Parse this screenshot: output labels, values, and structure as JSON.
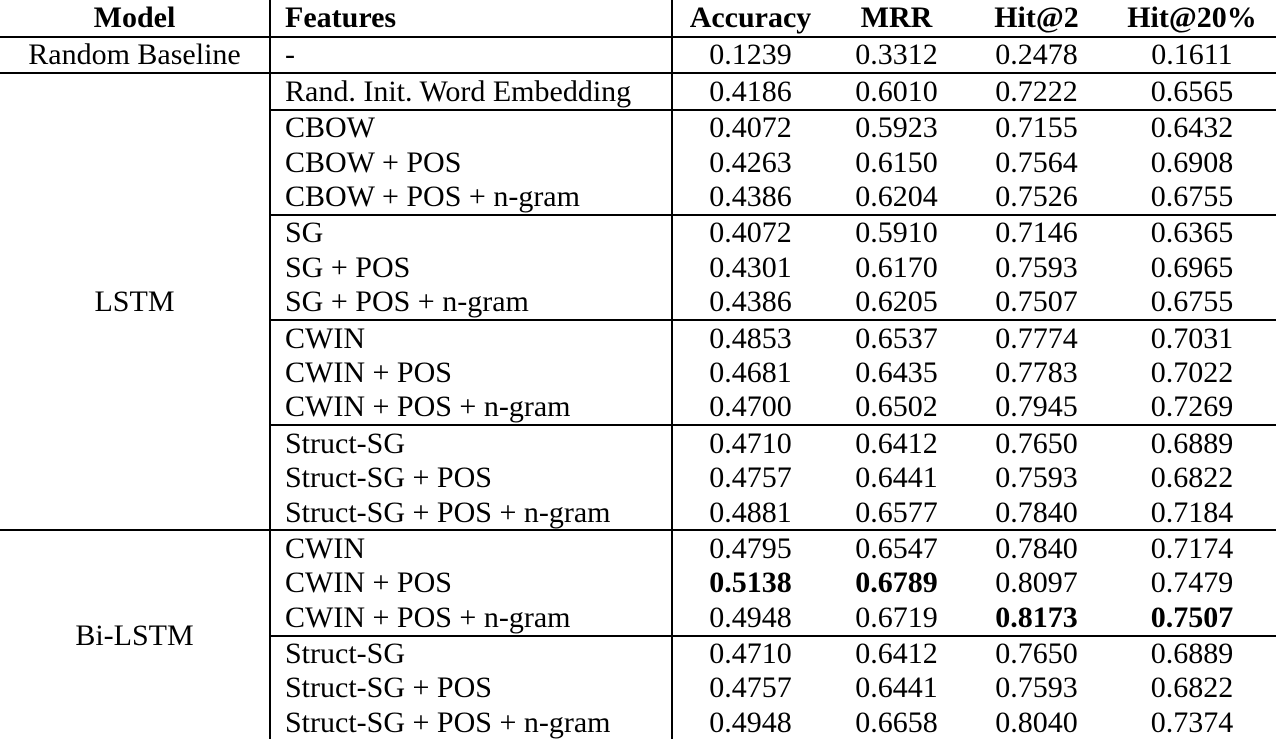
{
  "table": {
    "columns": [
      "Model",
      "Features",
      "Accuracy",
      "MRR",
      "Hit@2",
      "Hit@20%"
    ],
    "groups": [
      {
        "model": "Random Baseline",
        "section_rule": false,
        "rows": [
          {
            "features": "-",
            "values": [
              "0.1239",
              "0.3312",
              "0.2478",
              "0.1611"
            ],
            "bold": [],
            "separator_above": false
          }
        ]
      },
      {
        "model": "LSTM",
        "section_rule": true,
        "rows": [
          {
            "features": "Rand. Init. Word Embedding",
            "values": [
              "0.4186",
              "0.6010",
              "0.7222",
              "0.6565"
            ],
            "bold": [],
            "separator_above": false
          },
          {
            "features": "CBOW",
            "values": [
              "0.4072",
              "0.5923",
              "0.7155",
              "0.6432"
            ],
            "bold": [],
            "separator_above": true
          },
          {
            "features": "CBOW + POS",
            "values": [
              "0.4263",
              "0.6150",
              "0.7564",
              "0.6908"
            ],
            "bold": [],
            "separator_above": false
          },
          {
            "features": "CBOW + POS + n-gram",
            "values": [
              "0.4386",
              "0.6204",
              "0.7526",
              "0.6755"
            ],
            "bold": [],
            "separator_above": false
          },
          {
            "features": "SG",
            "values": [
              "0.4072",
              "0.5910",
              "0.7146",
              "0.6365"
            ],
            "bold": [],
            "separator_above": true
          },
          {
            "features": "SG + POS",
            "values": [
              "0.4301",
              "0.6170",
              "0.7593",
              "0.6965"
            ],
            "bold": [],
            "separator_above": false
          },
          {
            "features": "SG + POS + n-gram",
            "values": [
              "0.4386",
              "0.6205",
              "0.7507",
              "0.6755"
            ],
            "bold": [],
            "separator_above": false
          },
          {
            "features": "CWIN",
            "values": [
              "0.4853",
              "0.6537",
              "0.7774",
              "0.7031"
            ],
            "bold": [],
            "separator_above": true
          },
          {
            "features": "CWIN + POS",
            "values": [
              "0.4681",
              "0.6435",
              "0.7783",
              "0.7022"
            ],
            "bold": [],
            "separator_above": false
          },
          {
            "features": "CWIN + POS + n-gram",
            "values": [
              "0.4700",
              "0.6502",
              "0.7945",
              "0.7269"
            ],
            "bold": [],
            "separator_above": false
          },
          {
            "features": "Struct-SG",
            "values": [
              "0.4710",
              "0.6412",
              "0.7650",
              "0.6889"
            ],
            "bold": [],
            "separator_above": true
          },
          {
            "features": "Struct-SG + POS",
            "values": [
              "0.4757",
              "0.6441",
              "0.7593",
              "0.6822"
            ],
            "bold": [],
            "separator_above": false
          },
          {
            "features": "Struct-SG + POS + n-gram",
            "values": [
              "0.4881",
              "0.6577",
              "0.7840",
              "0.7184"
            ],
            "bold": [],
            "separator_above": false
          }
        ]
      },
      {
        "model": "Bi-LSTM",
        "section_rule": true,
        "rows": [
          {
            "features": "CWIN",
            "values": [
              "0.4795",
              "0.6547",
              "0.7840",
              "0.7174"
            ],
            "bold": [],
            "separator_above": false
          },
          {
            "features": "CWIN + POS",
            "values": [
              "0.5138",
              "0.6789",
              "0.8097",
              "0.7479"
            ],
            "bold": [
              0,
              1
            ],
            "separator_above": false
          },
          {
            "features": "CWIN + POS + n-gram",
            "values": [
              "0.4948",
              "0.6719",
              "0.8173",
              "0.7507"
            ],
            "bold": [
              2,
              3
            ],
            "separator_above": false
          },
          {
            "features": "Struct-SG",
            "values": [
              "0.4710",
              "0.6412",
              "0.7650",
              "0.6889"
            ],
            "bold": [],
            "separator_above": true
          },
          {
            "features": "Struct-SG + POS",
            "values": [
              "0.4757",
              "0.6441",
              "0.7593",
              "0.6822"
            ],
            "bold": [],
            "separator_above": false
          },
          {
            "features": "Struct-SG + POS + n-gram",
            "values": [
              "0.4948",
              "0.6658",
              "0.8040",
              "0.7374"
            ],
            "bold": [],
            "separator_above": false
          }
        ]
      }
    ]
  }
}
